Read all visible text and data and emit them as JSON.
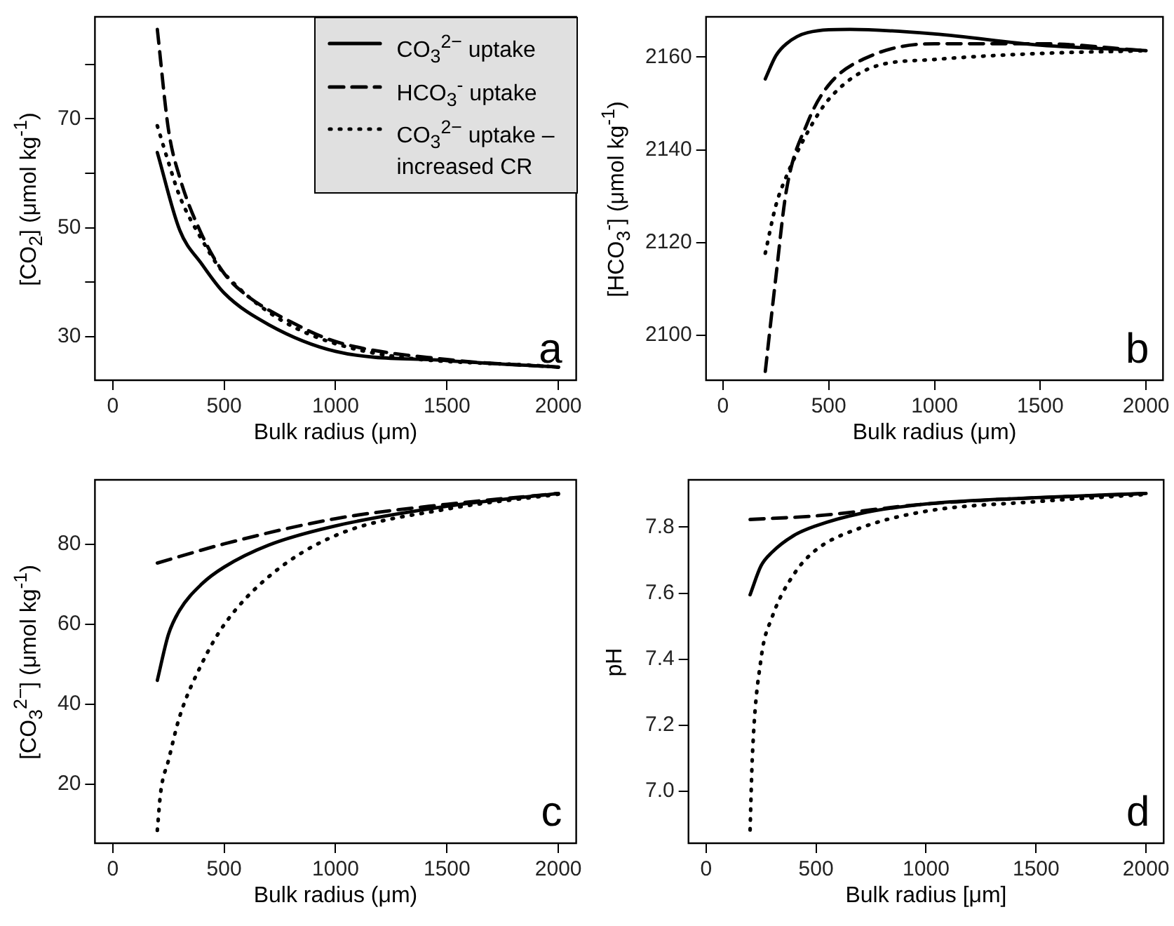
{
  "chart_data": [
    {
      "type": "line",
      "xlabel": "Bulk radius (μm)",
      "ylabel": "[CO$_{2}$] (μmol kg$^{-1}$)",
      "legend": "top right",
      "annotations": [
        "a"
      ],
      "xlim": [
        -80,
        2080
      ],
      "xticks": [
        0,
        500,
        1000,
        1500,
        2000
      ],
      "ylim": [
        22,
        88.7
      ],
      "yticks": [
        30,
        {
          "value": 40,
          "label": null
        },
        50,
        {
          "value": 60,
          "label": null
        },
        70,
        {
          "value": 80,
          "label": null
        }
      ],
      "series": [
        {
          "name": "CO$_{3}$$^{2−}$ uptake",
          "color": "#000000",
          "line_style": "solid",
          "x": [
            200,
            300,
            400,
            500,
            700,
            1000,
            1500,
            2000
          ],
          "values": [
            63.8,
            49.6,
            43.3,
            38,
            32.2,
            27.3,
            25.6,
            24.4
          ]
        },
        {
          "name": "HCO$_{3}$$^{-}$ uptake",
          "color": "#000000",
          "line_style": "dashed",
          "x": [
            200,
            250,
            300,
            400,
            500,
            600,
            800,
            1000,
            1500,
            2000
          ],
          "values": [
            86.4,
            68,
            59.3,
            48.7,
            41.6,
            37.6,
            32.7,
            29.1,
            25.8,
            24.4
          ]
        },
        {
          "name": "CO$_{3}$$^{2−}$ uptake – increased CR",
          "color": "#000000",
          "line_style": "dotted",
          "x": [
            200,
            250,
            300,
            400,
            500,
            1000,
            2000
          ],
          "values": [
            68.7,
            62,
            55.8,
            47.8,
            41.6,
            28.7,
            24.4
          ]
        }
      ]
    },
    {
      "type": "line",
      "xlabel": "Bulk radius (μm)",
      "ylabel": "[HCO$_{3}$$^{-}$] (μmol kg$^{-1}$)",
      "annotations": [
        "b"
      ],
      "xlim": [
        -80,
        2080
      ],
      "xticks": [
        0,
        500,
        1000,
        1500,
        2000
      ],
      "ylim": [
        2090.3,
        2168.7
      ],
      "yticks": [
        2100,
        2120,
        2140,
        2160
      ],
      "series": [
        {
          "color": "#000000",
          "line_style": "solid",
          "x": [
            200,
            250,
            300,
            400,
            600,
            1000,
            1500,
            2000
          ],
          "values": [
            2155.3,
            2160.3,
            2162.9,
            2165.3,
            2166,
            2165,
            2162.6,
            2161.4
          ]
        },
        {
          "color": "#000000",
          "line_style": "dashed",
          "x": [
            200,
            250,
            300,
            400,
            500,
            700,
            1000,
            1500,
            2000
          ],
          "values": [
            2092.2,
            2112.5,
            2131.3,
            2145.9,
            2154,
            2160.3,
            2162.9,
            2162.9,
            2161.4
          ]
        },
        {
          "color": "#000000",
          "line_style": "dotted",
          "x": [
            200,
            250,
            300,
            400,
            500,
            700,
            1000,
            1500,
            2000
          ],
          "values": [
            2117.7,
            2128,
            2134.3,
            2143.8,
            2150.9,
            2157.7,
            2159.5,
            2160.8,
            2161.4
          ]
        }
      ]
    },
    {
      "type": "line",
      "xlabel": "Bulk radius (μm)",
      "ylabel": "[CO$_{3}$$^{2−}$] (μmol kg$^{-1}$)",
      "annotations": [
        "c"
      ],
      "xlim": [
        -80,
        2080
      ],
      "xticks": [
        0,
        500,
        1000,
        1500,
        2000
      ],
      "ylim": [
        5.3,
        96.1
      ],
      "yticks": [
        20,
        40,
        60,
        80
      ],
      "series": [
        {
          "color": "#000000",
          "line_style": "solid",
          "x": [
            200,
            250,
            300,
            400,
            500,
            700,
            1000,
            1500,
            2000
          ],
          "values": [
            46,
            57.5,
            63.5,
            70.1,
            74.3,
            79.8,
            84.6,
            89.5,
            92.7
          ]
        },
        {
          "color": "#000000",
          "line_style": "dashed",
          "x": [
            200,
            500,
            1000,
            1500,
            2000
          ],
          "values": [
            75.3,
            80.1,
            86.4,
            90,
            92.7
          ]
        },
        {
          "color": "#000000",
          "line_style": "dotted",
          "x": [
            200,
            215,
            250,
            300,
            400,
            500,
            700,
            1000,
            1500,
            2000
          ],
          "values": [
            8.5,
            18,
            26,
            36.9,
            50.2,
            59.9,
            71.9,
            82.2,
            88.8,
            92.5
          ]
        }
      ]
    },
    {
      "type": "line",
      "xlabel": "Bulk radius [μm]",
      "ylabel": "pH",
      "annotations": [
        "d"
      ],
      "xlim": [
        -80,
        2080
      ],
      "xticks": [
        0,
        500,
        1000,
        1500,
        2000
      ],
      "ylim": [
        6.843,
        7.943
      ],
      "yticks": [
        {
          "value": 7.0,
          "label": "7.0"
        },
        7.2,
        7.4,
        7.6,
        7.8
      ],
      "series": [
        {
          "color": "#000000",
          "line_style": "solid",
          "x": [
            200,
            250,
            300,
            400,
            500,
            700,
            1000,
            1500,
            2000
          ],
          "values": [
            7.595,
            7.683,
            7.724,
            7.775,
            7.804,
            7.841,
            7.87,
            7.889,
            7.902
          ]
        },
        {
          "color": "#000000",
          "line_style": "dashed",
          "x": [
            200,
            500,
            1000,
            2000
          ],
          "values": [
            7.823,
            7.834,
            7.87,
            7.902
          ]
        },
        {
          "color": "#000000",
          "line_style": "dotted",
          "x": [
            200,
            210,
            250,
            300,
            400,
            500,
            700,
            1000,
            1500,
            2000
          ],
          "values": [
            6.883,
            7.1,
            7.402,
            7.527,
            7.658,
            7.731,
            7.797,
            7.848,
            7.877,
            7.899
          ]
        }
      ]
    }
  ]
}
